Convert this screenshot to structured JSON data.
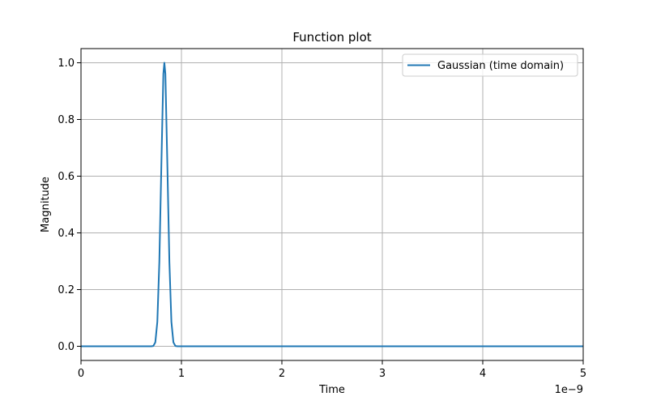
{
  "chart_data": {
    "type": "line",
    "title": "Function plot",
    "xlabel": "Time",
    "ylabel": "Magnitude",
    "x_offset_label": "1e−9",
    "xlim": [
      0,
      5
    ],
    "ylim": [
      -0.05,
      1.05
    ],
    "x_ticks": [
      0,
      1,
      2,
      3,
      4,
      5
    ],
    "x_tick_labels": [
      "0",
      "1",
      "2",
      "3",
      "4",
      "5"
    ],
    "y_ticks": [
      0.0,
      0.2,
      0.4,
      0.6,
      0.8,
      1.0
    ],
    "y_tick_labels": [
      "0.0",
      "0.2",
      "0.4",
      "0.6",
      "0.8",
      "1.0"
    ],
    "grid": true,
    "legend_position": "top-right",
    "series": [
      {
        "name": "Gaussian (time domain)",
        "color": "#1f77b4",
        "x": [
          0,
          0.5,
          0.7,
          0.72,
          0.74,
          0.76,
          0.78,
          0.8,
          0.82,
          0.83,
          0.84,
          0.86,
          0.88,
          0.9,
          0.92,
          0.94,
          0.96,
          1.0,
          2.0,
          3.0,
          4.0,
          5.0
        ],
        "values": [
          0,
          0,
          0,
          0.0012,
          0.0139,
          0.0863,
          0.2976,
          0.6368,
          0.9608,
          1.0,
          0.9608,
          0.6368,
          0.2976,
          0.0863,
          0.0139,
          0.0012,
          0,
          0,
          0,
          0,
          0,
          0
        ]
      }
    ]
  }
}
